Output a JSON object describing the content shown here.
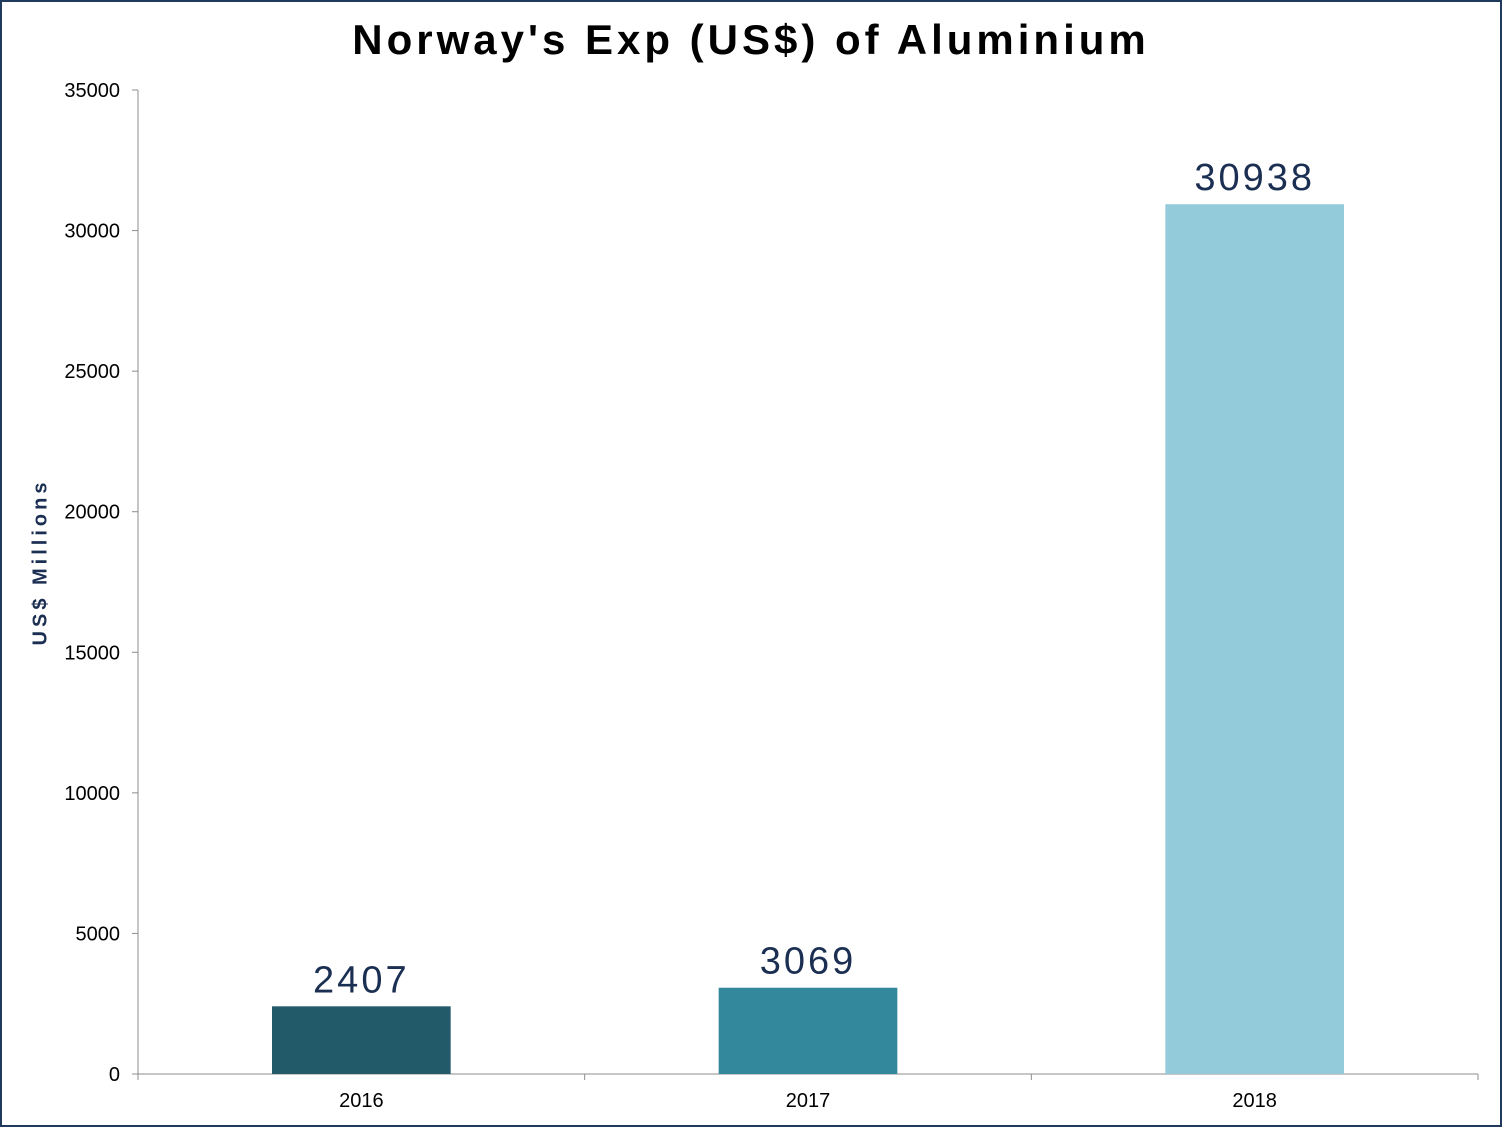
{
  "chart_data": {
    "type": "bar",
    "title": "Norway's Exp (US$) of Aluminium",
    "ylabel": "US$ Millions",
    "xlabel": "",
    "categories": [
      "2016",
      "2017",
      "2018"
    ],
    "values": [
      2407,
      3069,
      30938
    ],
    "data_labels": [
      "2407",
      "3069",
      "30938"
    ],
    "colors": [
      "#225a6a",
      "#33889b",
      "#93cbda"
    ],
    "ylim": [
      0,
      35000
    ],
    "yticks": [
      0,
      5000,
      10000,
      15000,
      20000,
      25000,
      30000,
      35000
    ],
    "ytick_labels": [
      "0",
      "5000",
      "10000",
      "15000",
      "20000",
      "25000",
      "30000",
      "35000"
    ],
    "grid": false,
    "legend": "none"
  }
}
